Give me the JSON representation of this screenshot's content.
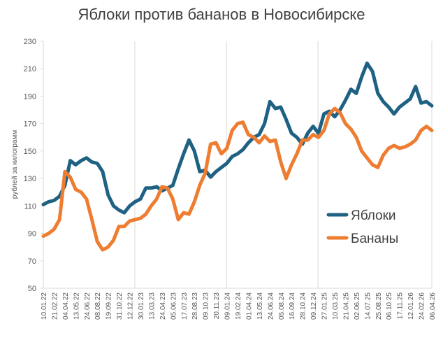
{
  "chart_data": {
    "type": "line",
    "title": "Яблоки против бананов в Новосибирске",
    "y_label": "рублей за килограмм",
    "categories": [
      "10.01.22",
      null,
      "21.02.22",
      null,
      "04.04.22",
      null,
      "13.05.22",
      null,
      "24.06.22",
      null,
      "08.08.22",
      null,
      "19.09.22",
      null,
      "31.10.22",
      null,
      "12.12.22",
      null,
      "30.01.23",
      null,
      "13.03.23",
      null,
      "24.04.23",
      null,
      "05.06.23",
      null,
      "17.07.23",
      null,
      "28.08.23",
      null,
      "09.10.23",
      null,
      "20.11.23",
      null,
      "09.01.24",
      null,
      "19.02.24",
      null,
      "01.04.24",
      null,
      "13.05.24",
      null,
      "24.06.24",
      null,
      "05.08.24",
      null,
      "16.09.24",
      null,
      "28.10.24",
      null,
      "09.12.24",
      null,
      "27.01.25",
      null,
      "10.03.25",
      null,
      "21.04.25",
      null,
      "02.06.25",
      null,
      "14.07.25",
      null,
      "25.08.25",
      null,
      "06.10.25",
      null,
      "17.11.25",
      null,
      "12.01.26",
      null,
      "24.02.26",
      null,
      "06.04.26"
    ],
    "series": [
      {
        "name": "Яблоки",
        "color": "#1f6183",
        "values": [
          111,
          113,
          114,
          117,
          125,
          143,
          140,
          143,
          145,
          142,
          141,
          135,
          118,
          110,
          107,
          105,
          110,
          113,
          115,
          123,
          123,
          124,
          121,
          123,
          125,
          137,
          148,
          158,
          150,
          135,
          136,
          131,
          135,
          138,
          141,
          146,
          148,
          151,
          156,
          160,
          162,
          170,
          186,
          181,
          182,
          173,
          163,
          160,
          155,
          163,
          168,
          163,
          177,
          179,
          175,
          180,
          187,
          195,
          192,
          204,
          214,
          208,
          192,
          186,
          182,
          177,
          182,
          185,
          188,
          197,
          185,
          186,
          183
        ]
      },
      {
        "name": "Бананы",
        "color": "#ee7d31",
        "values": [
          88,
          90,
          93,
          100,
          135,
          131,
          122,
          120,
          115,
          100,
          84,
          78,
          80,
          85,
          95,
          95,
          99,
          100,
          101,
          104,
          110,
          115,
          124,
          123,
          115,
          100,
          105,
          104,
          113,
          125,
          134,
          155,
          156,
          148,
          152,
          165,
          170,
          171,
          162,
          160,
          156,
          161,
          157,
          158,
          142,
          130,
          140,
          148,
          158,
          158,
          162,
          160,
          165,
          177,
          181,
          178,
          170,
          166,
          160,
          150,
          145,
          140,
          138,
          147,
          152,
          154,
          152,
          153,
          155,
          158,
          165,
          168,
          165
        ]
      }
    ],
    "ylim": [
      50,
      230
    ],
    "yticks": [
      50,
      70,
      90,
      110,
      130,
      150,
      170,
      190,
      210,
      230
    ],
    "legend": "right"
  }
}
